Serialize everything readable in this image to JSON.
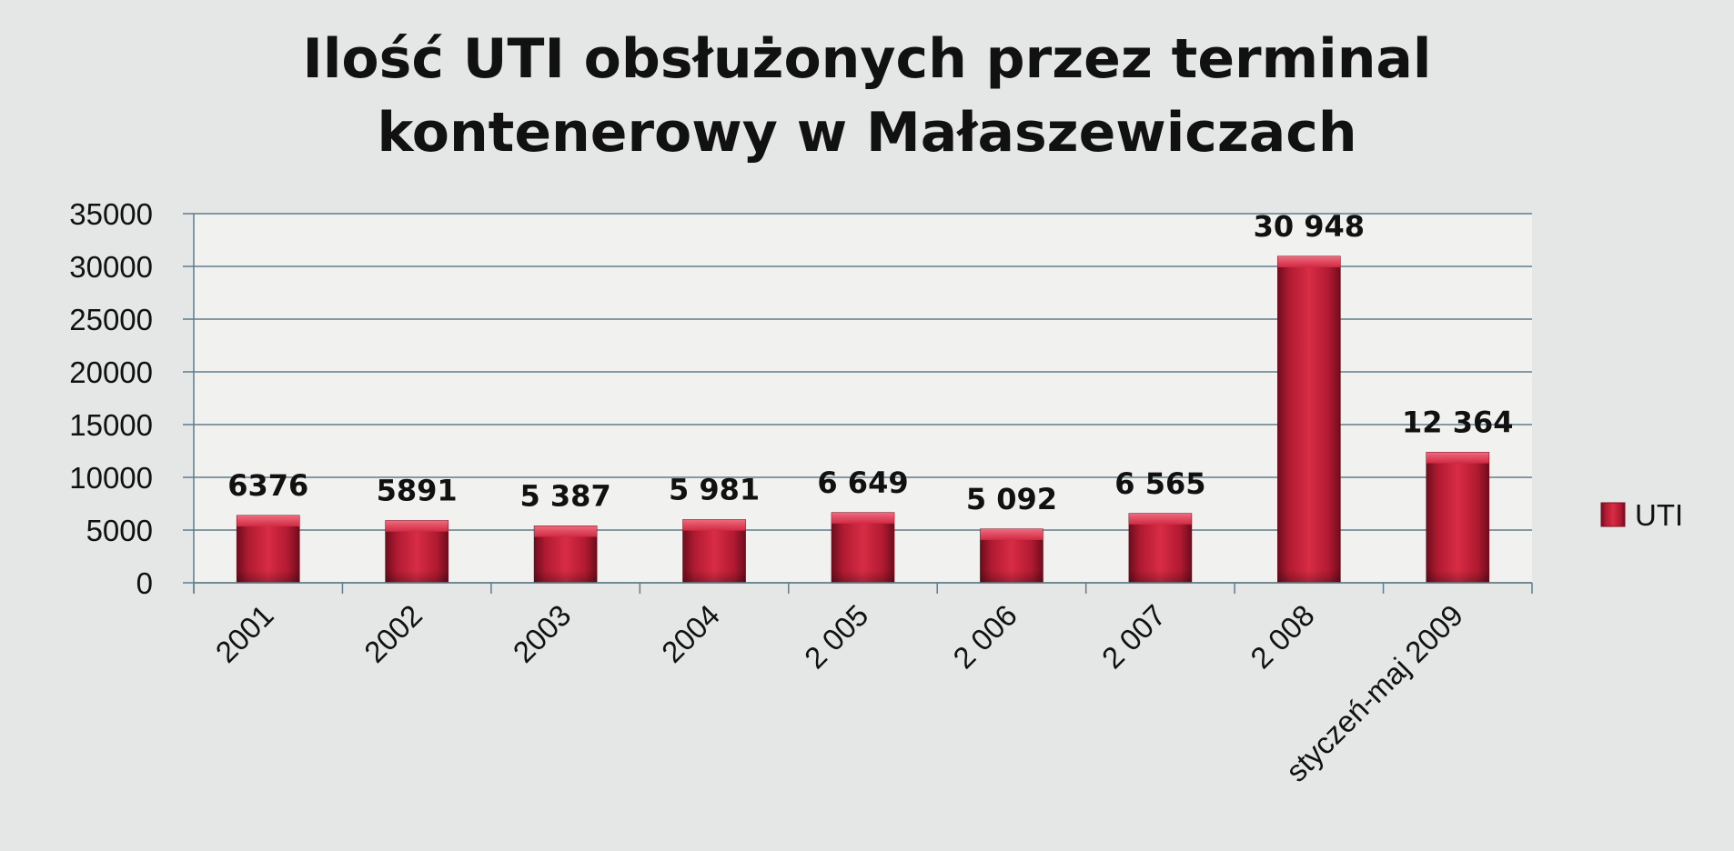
{
  "chart_data": {
    "type": "bar",
    "title_lines": [
      "Ilość UTI obsłużonych przez terminal",
      "kontenerowy w Małaszewiczach"
    ],
    "xlabel": "",
    "ylabel": "",
    "categories": [
      "2001",
      "2002",
      "2003",
      "2004",
      "2 005",
      "2 006",
      "2 007",
      "2 008",
      "styczeń-maj 2009"
    ],
    "series": [
      {
        "name": "UTI",
        "values": [
          6376,
          5891,
          5387,
          5981,
          6649,
          5092,
          6565,
          30948,
          12364
        ],
        "data_labels": [
          "6376",
          "5891",
          "5 387",
          "5 981",
          "6 649",
          "5 092",
          "6 565",
          "30 948",
          "12 364"
        ],
        "color": "#c8213a"
      }
    ],
    "ylim": [
      0,
      35000
    ],
    "yticks": [
      "0",
      "5000",
      "10000",
      "15000",
      "20000",
      "25000",
      "30000",
      "35000"
    ],
    "grid": true,
    "legend_position": "right",
    "colors": {
      "background": "#e4e7e6",
      "plot_background": "#f1f1f0",
      "gridline": "#5f7d8a",
      "bar": "#c8213a",
      "bar_dark": "#7d0f22",
      "bar_top": "#e85569"
    }
  }
}
